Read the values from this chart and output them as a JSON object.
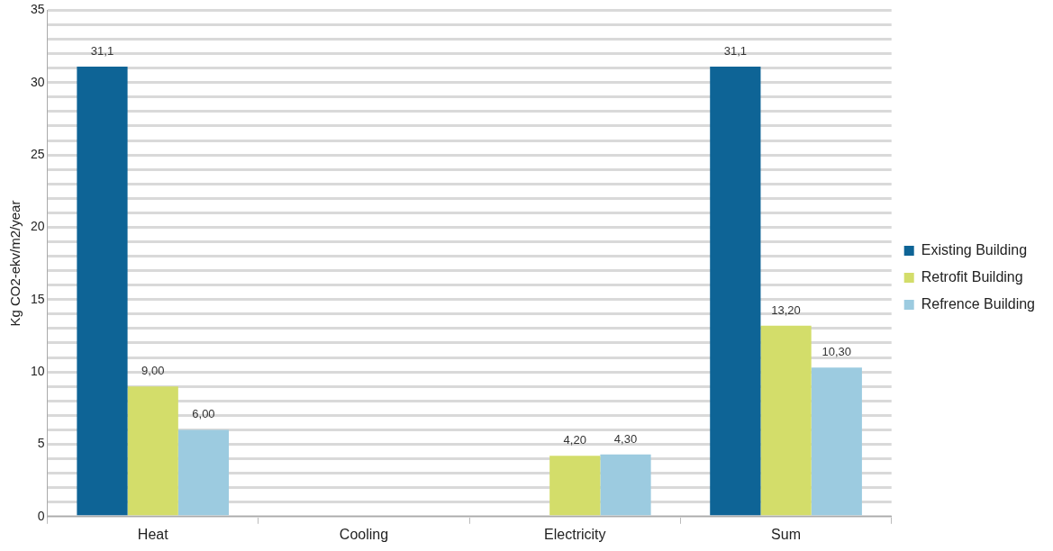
{
  "chart_data": {
    "type": "bar",
    "ylabel": "Kg CO2-ekv/m2/year",
    "categories": [
      "Heat",
      "Cooling",
      "Electricity",
      "Sum"
    ],
    "series": [
      {
        "name": "Existing Building",
        "color": "#0e6496",
        "values": [
          31.1,
          null,
          null,
          31.1
        ],
        "value_labels": [
          "31,1",
          null,
          null,
          "31,1"
        ]
      },
      {
        "name": "Retrofit Building",
        "color": "#d3dd6a",
        "values": [
          9.0,
          null,
          4.2,
          13.2
        ],
        "value_labels": [
          "9,00",
          null,
          "4,20",
          "13,20"
        ]
      },
      {
        "name": "Refrence Building",
        "color": "#9ccbe0",
        "values": [
          6.0,
          null,
          4.3,
          10.3
        ],
        "value_labels": [
          "6,00",
          null,
          "4,30",
          "10,30"
        ]
      }
    ],
    "ylim": [
      0,
      35
    ],
    "yticks": [
      0,
      {
        "value": 1,
        "label": null
      },
      {
        "value": 2,
        "label": null
      },
      {
        "value": 3,
        "label": null
      },
      {
        "value": 4,
        "label": null
      },
      5,
      {
        "value": 6,
        "label": null
      },
      {
        "value": 7,
        "label": null
      },
      {
        "value": 8,
        "label": null
      },
      {
        "value": 9,
        "label": null
      },
      10,
      {
        "value": 11,
        "label": null
      },
      {
        "value": 12,
        "label": null
      },
      {
        "value": 13,
        "label": null
      },
      {
        "value": 14,
        "label": null
      },
      15,
      {
        "value": 16,
        "label": null
      },
      {
        "value": 17,
        "label": null
      },
      {
        "value": 18,
        "label": null
      },
      {
        "value": 19,
        "label": null
      },
      20,
      {
        "value": 21,
        "label": null
      },
      {
        "value": 22,
        "label": null
      },
      {
        "value": 23,
        "label": null
      },
      {
        "value": 24,
        "label": null
      },
      25,
      {
        "value": 26,
        "label": null
      },
      {
        "value": 27,
        "label": null
      },
      {
        "value": 28,
        "label": null
      },
      {
        "value": 29,
        "label": null
      },
      30,
      {
        "value": 31,
        "label": null
      },
      {
        "value": 32,
        "label": null
      },
      {
        "value": 33,
        "label": null
      },
      {
        "value": 34,
        "label": null
      },
      35
    ],
    "grid": "y",
    "legend": "right"
  }
}
